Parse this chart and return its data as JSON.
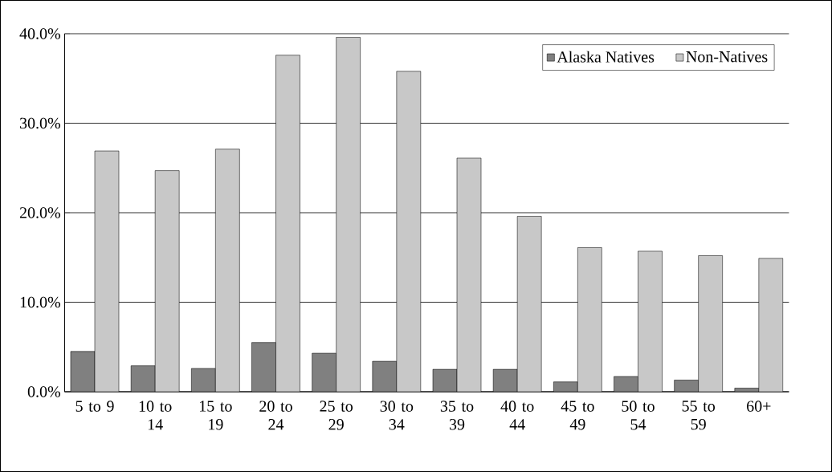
{
  "chart_data": {
    "type": "bar",
    "categories": [
      "5 to 9",
      "10 to 14",
      "15 to 19",
      "20 to 24",
      "25 to 29",
      "30 to 34",
      "35 to 39",
      "40 to 44",
      "45 to 49",
      "50 to 54",
      "55 to 59",
      "60+"
    ],
    "series": [
      {
        "name": "Alaska Natives",
        "color": "#808080",
        "values": [
          4.5,
          2.9,
          2.6,
          5.5,
          4.3,
          3.4,
          2.5,
          2.5,
          1.1,
          1.7,
          1.3,
          0.4
        ]
      },
      {
        "name": "Non-Natives",
        "color": "#c8c8c8",
        "values": [
          26.9,
          24.7,
          27.1,
          37.6,
          39.6,
          35.8,
          26.1,
          19.6,
          16.1,
          15.7,
          15.2,
          14.9
        ]
      }
    ],
    "ylim": [
      0,
      40
    ],
    "yticks": [
      {
        "value": 0,
        "label": "0.0%"
      },
      {
        "value": 10,
        "label": "10.0%"
      },
      {
        "value": 20,
        "label": "20.0%"
      },
      {
        "value": 30,
        "label": "30.0%"
      },
      {
        "value": 40,
        "label": "40.0%"
      }
    ],
    "grid": "y",
    "legend": "top right"
  }
}
